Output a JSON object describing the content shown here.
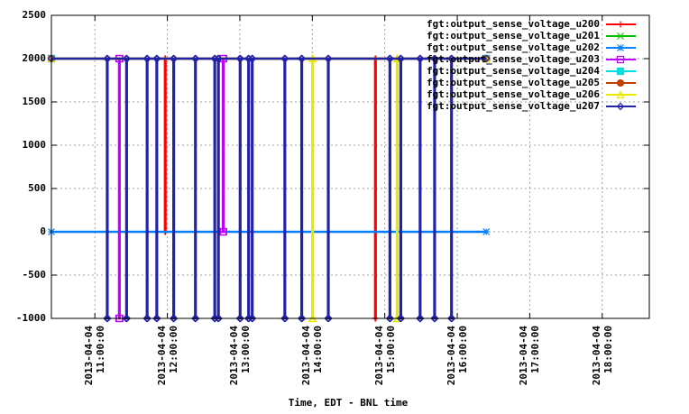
{
  "chart_data": {
    "type": "line",
    "xlabel": "Time, EDT - BNL time",
    "xlim": [
      "2013-04-04 10:24:00",
      "2013-04-04 18:39:00"
    ],
    "xticks": [
      "2013-04-04 11:00:00",
      "2013-04-04 12:00:00",
      "2013-04-04 13:00:00",
      "2013-04-04 14:00:00",
      "2013-04-04 15:00:00",
      "2013-04-04 16:00:00",
      "2013-04-04 17:00:00",
      "2013-04-04 18:00:00"
    ],
    "ylim": [
      -1000,
      2500
    ],
    "yticks": [
      -1000,
      -500,
      0,
      500,
      1000,
      1500,
      2000,
      2500
    ],
    "grid": true,
    "legend": "top-right",
    "series": [
      {
        "name": "fgt:output_sense_voltage_u200",
        "color": "#ff0000",
        "marker": "plus",
        "x": [
          "2013-04-04 10:24:00",
          "2013-04-04 11:58:00",
          "2013-04-04 11:58:00",
          "2013-04-04 11:58:30",
          "2013-04-04 11:58:30",
          "2013-04-04 14:52:00",
          "2013-04-04 14:52:00",
          "2013-04-04 14:52:30",
          "2013-04-04 14:52:30",
          "2013-04-04 16:24:00"
        ],
        "values": [
          2000,
          2000,
          0,
          0,
          2000,
          2000,
          -1000,
          -1000,
          2000,
          2000
        ]
      },
      {
        "name": "fgt:output_sense_voltage_u201",
        "color": "#00c000",
        "marker": "cross",
        "x": [
          "2013-04-04 10:24:00",
          "2013-04-04 16:24:00"
        ],
        "values": [
          2000,
          2000
        ]
      },
      {
        "name": "fgt:output_sense_voltage_u202",
        "color": "#0080ff",
        "marker": "star",
        "x": [
          "2013-04-04 10:24:00",
          "2013-04-04 16:24:00"
        ],
        "values": [
          0,
          0
        ]
      },
      {
        "name": "fgt:output_sense_voltage_u203",
        "color": "#c000ff",
        "marker": "square",
        "x": [
          "2013-04-04 10:24:00",
          "2013-04-04 11:20:00",
          "2013-04-04 11:20:00",
          "2013-04-04 11:20:30",
          "2013-04-04 11:20:30",
          "2013-04-04 12:46:00",
          "2013-04-04 12:46:00",
          "2013-04-04 12:46:30",
          "2013-04-04 12:46:30",
          "2013-04-04 16:24:00"
        ],
        "values": [
          2000,
          2000,
          -1000,
          -1000,
          2000,
          2000,
          0,
          0,
          2000,
          2000
        ]
      },
      {
        "name": "fgt:output_sense_voltage_u204",
        "color": "#00e0e0",
        "marker": "filled-square",
        "x": [
          "2013-04-04 10:24:00",
          "2013-04-04 16:24:00"
        ],
        "values": [
          2000,
          2000
        ]
      },
      {
        "name": "fgt:output_sense_voltage_u205",
        "color": "#c04000",
        "marker": "filled-circle",
        "x": [
          "2013-04-04 10:24:00",
          "2013-04-04 16:24:00"
        ],
        "values": [
          2000,
          2000
        ]
      },
      {
        "name": "fgt:output_sense_voltage_u206",
        "color": "#e8e800",
        "marker": "triangle",
        "x": [
          "2013-04-04 10:24:00",
          "2013-04-04 14:00:00",
          "2013-04-04 14:00:00",
          "2013-04-04 14:00:30",
          "2013-04-04 14:00:30",
          "2013-04-04 15:10:00",
          "2013-04-04 15:10:00",
          "2013-04-04 15:10:30",
          "2013-04-04 15:10:30",
          "2013-04-04 16:24:00"
        ],
        "values": [
          2000,
          2000,
          -1000,
          -1000,
          2000,
          2000,
          -1000,
          -1000,
          2000,
          2000
        ]
      },
      {
        "name": "fgt:output_sense_voltage_u207",
        "color": "#2222a8",
        "marker": "diamond",
        "x": [
          "2013-04-04 10:24:00",
          "2013-04-04 11:10:00",
          "2013-04-04 11:10:00",
          "2013-04-04 11:10:30",
          "2013-04-04 11:10:30",
          "2013-04-04 11:26:00",
          "2013-04-04 11:26:00",
          "2013-04-04 11:26:30",
          "2013-04-04 11:26:30",
          "2013-04-04 11:43:00",
          "2013-04-04 11:43:00",
          "2013-04-04 11:43:30",
          "2013-04-04 11:43:30",
          "2013-04-04 11:51:00",
          "2013-04-04 11:51:00",
          "2013-04-04 11:51:30",
          "2013-04-04 11:51:30",
          "2013-04-04 12:05:00",
          "2013-04-04 12:05:00",
          "2013-04-04 12:05:30",
          "2013-04-04 12:05:30",
          "2013-04-04 12:23:00",
          "2013-04-04 12:23:00",
          "2013-04-04 12:23:30",
          "2013-04-04 12:23:30",
          "2013-04-04 12:39:00",
          "2013-04-04 12:39:00",
          "2013-04-04 12:39:30",
          "2013-04-04 12:39:30",
          "2013-04-04 12:42:00",
          "2013-04-04 12:42:00",
          "2013-04-04 12:42:30",
          "2013-04-04 12:42:30",
          "2013-04-04 13:00:00",
          "2013-04-04 13:00:00",
          "2013-04-04 13:00:30",
          "2013-04-04 13:00:30",
          "2013-04-04 13:07:00",
          "2013-04-04 13:07:00",
          "2013-04-04 13:07:30",
          "2013-04-04 13:07:30",
          "2013-04-04 13:10:00",
          "2013-04-04 13:10:00",
          "2013-04-04 13:10:30",
          "2013-04-04 13:10:30",
          "2013-04-04 13:37:00",
          "2013-04-04 13:37:00",
          "2013-04-04 13:37:30",
          "2013-04-04 13:37:30",
          "2013-04-04 13:51:00",
          "2013-04-04 13:51:00",
          "2013-04-04 13:51:30",
          "2013-04-04 13:51:30",
          "2013-04-04 14:13:00",
          "2013-04-04 14:13:00",
          "2013-04-04 14:13:30",
          "2013-04-04 14:13:30",
          "2013-04-04 15:04:00",
          "2013-04-04 15:04:00",
          "2013-04-04 15:04:30",
          "2013-04-04 15:04:30",
          "2013-04-04 15:13:00",
          "2013-04-04 15:13:00",
          "2013-04-04 15:13:30",
          "2013-04-04 15:13:30",
          "2013-04-04 15:29:00",
          "2013-04-04 15:29:00",
          "2013-04-04 15:29:30",
          "2013-04-04 15:29:30",
          "2013-04-04 15:41:00",
          "2013-04-04 15:41:00",
          "2013-04-04 15:41:30",
          "2013-04-04 15:41:30",
          "2013-04-04 15:55:00",
          "2013-04-04 15:55:00",
          "2013-04-04 15:55:30",
          "2013-04-04 15:55:30",
          "2013-04-04 16:24:00"
        ],
        "values": [
          2000,
          2000,
          -1000,
          -1000,
          2000,
          2000,
          -1000,
          -1000,
          2000,
          2000,
          -1000,
          -1000,
          2000,
          2000,
          -1000,
          -1000,
          2000,
          2000,
          -1000,
          -1000,
          2000,
          2000,
          -1000,
          -1000,
          2000,
          2000,
          -1000,
          -1000,
          2000,
          2000,
          -1000,
          -1000,
          2000,
          2000,
          -1000,
          -1000,
          2000,
          2000,
          -1000,
          -1000,
          2000,
          2000,
          -1000,
          -1000,
          2000,
          2000,
          -1000,
          -1000,
          2000,
          2000,
          -1000,
          -1000,
          2000,
          2000,
          -1000,
          -1000,
          2000,
          2000,
          -1000,
          -1000,
          2000,
          2000,
          -1000,
          -1000,
          2000,
          2000,
          -1000,
          -1000,
          2000,
          2000,
          -1000,
          -1000,
          2000,
          2000,
          -1000,
          -1000,
          2000,
          2000
        ]
      }
    ]
  }
}
